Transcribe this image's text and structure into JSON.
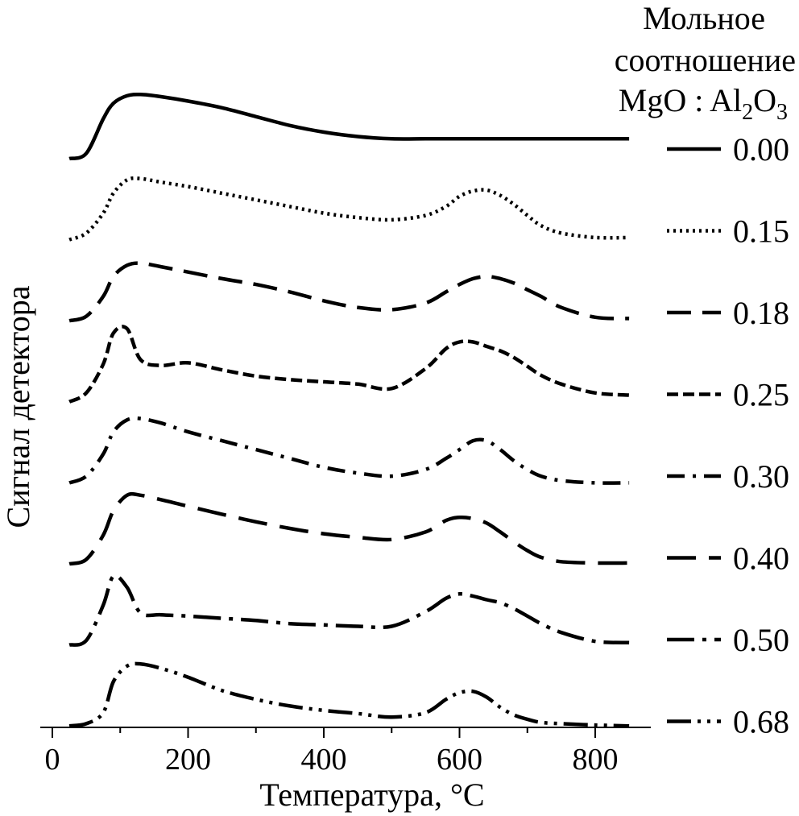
{
  "chart_data": {
    "type": "line",
    "title": "",
    "xlabel": "Температура, °C",
    "ylabel": "Сигнал детектора",
    "xlim": [
      -10,
      860
    ],
    "xticks": [
      0,
      200,
      400,
      600,
      800
    ],
    "xtick_labels": [
      "0",
      "200",
      "400",
      "600",
      "800"
    ],
    "grid": false,
    "y_scale": "arbitrary units, curves vertically offset",
    "legend": {
      "placement": "right",
      "title_lines": [
        "Мольное",
        "соотношение"
      ],
      "title_formula": {
        "a": "MgO : Al",
        "a_sub": "2",
        "b": "O",
        "b_sub": "3"
      }
    },
    "x": [
      25,
      50,
      75,
      90,
      110,
      130,
      160,
      200,
      250,
      300,
      350,
      400,
      450,
      500,
      550,
      580,
      600,
      620,
      640,
      660,
      680,
      700,
      720,
      750,
      800,
      850
    ],
    "series": [
      {
        "name": "0.00",
        "style": "solid",
        "offset": 0,
        "values": [
          0,
          0.12,
          0.9,
          1.25,
          1.42,
          1.45,
          1.4,
          1.3,
          1.15,
          0.95,
          0.75,
          0.6,
          0.5,
          0.45,
          0.45,
          0.45,
          0.45,
          0.45,
          0.45,
          0.45,
          0.45,
          0.45,
          0.45,
          0.45,
          0.45,
          0.45
        ]
      },
      {
        "name": "0.15",
        "style": "dotted",
        "offset": 1,
        "values": [
          0,
          0.15,
          0.6,
          1.05,
          1.35,
          1.38,
          1.3,
          1.2,
          1.05,
          0.9,
          0.75,
          0.6,
          0.5,
          0.45,
          0.55,
          0.75,
          0.98,
          1.1,
          1.12,
          1.0,
          0.8,
          0.55,
          0.32,
          0.15,
          0.05,
          0.05
        ]
      },
      {
        "name": "0.18",
        "style": "dashed",
        "offset": 2,
        "values": [
          0,
          0.1,
          0.55,
          1.0,
          1.25,
          1.3,
          1.22,
          1.1,
          0.95,
          0.82,
          0.65,
          0.45,
          0.3,
          0.25,
          0.4,
          0.65,
          0.82,
          0.95,
          1.0,
          0.95,
          0.85,
          0.7,
          0.55,
          0.3,
          0.08,
          0.05
        ]
      },
      {
        "name": "0.25",
        "style": "dashed-short",
        "offset": 3,
        "values": [
          0,
          0.2,
          0.85,
          1.55,
          1.65,
          0.95,
          0.82,
          0.88,
          0.72,
          0.58,
          0.5,
          0.45,
          0.4,
          0.3,
          0.75,
          1.2,
          1.35,
          1.35,
          1.25,
          1.15,
          1.0,
          0.8,
          0.6,
          0.4,
          0.2,
          0.15
        ]
      },
      {
        "name": "0.30",
        "style": "dash-dot",
        "offset": 4,
        "values": [
          0,
          0.15,
          0.65,
          1.15,
          1.42,
          1.45,
          1.35,
          1.15,
          0.95,
          0.75,
          0.55,
          0.35,
          0.22,
          0.15,
          0.3,
          0.55,
          0.75,
          0.95,
          0.95,
          0.75,
          0.5,
          0.3,
          0.15,
          0.05,
          0.0,
          0.0
        ]
      },
      {
        "name": "0.40",
        "style": "long-dash",
        "offset": 5,
        "values": [
          0,
          0.1,
          0.65,
          1.2,
          1.55,
          1.55,
          1.45,
          1.3,
          1.12,
          0.95,
          0.8,
          0.68,
          0.6,
          0.55,
          0.72,
          0.98,
          1.05,
          1.02,
          0.92,
          0.72,
          0.5,
          0.3,
          0.15,
          0.05,
          0.02,
          0.02
        ]
      },
      {
        "name": "0.50",
        "style": "long-dash-dot",
        "offset": 6,
        "values": [
          0,
          0.1,
          0.9,
          1.55,
          1.3,
          0.72,
          0.68,
          0.65,
          0.6,
          0.55,
          0.48,
          0.45,
          0.42,
          0.42,
          0.75,
          1.05,
          1.15,
          1.1,
          1.02,
          0.95,
          0.82,
          0.65,
          0.48,
          0.28,
          0.08,
          0.05
        ]
      },
      {
        "name": "0.68",
        "style": "long-dash-double-dot",
        "offset": 7,
        "values": [
          0,
          0.05,
          0.3,
          1.0,
          1.35,
          1.4,
          1.3,
          1.1,
          0.8,
          0.6,
          0.45,
          0.35,
          0.28,
          0.2,
          0.3,
          0.6,
          0.75,
          0.78,
          0.65,
          0.42,
          0.25,
          0.15,
          0.08,
          0.05,
          0.02,
          0.0
        ]
      }
    ]
  }
}
